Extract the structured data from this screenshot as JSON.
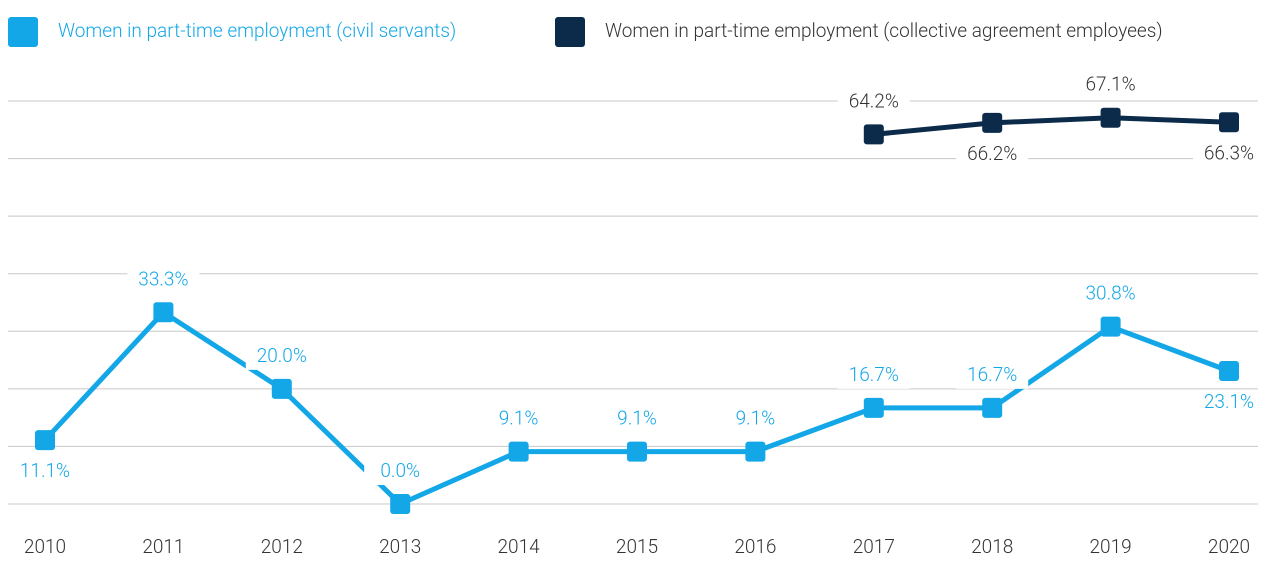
{
  "chart_data": {
    "type": "line",
    "categories": [
      "2010",
      "2011",
      "2012",
      "2013",
      "2014",
      "2015",
      "2016",
      "2017",
      "2018",
      "2019",
      "2020"
    ],
    "series": [
      {
        "name": "Women in part-time employment (civil servants)",
        "color": "#13a7e8",
        "values": [
          11.1,
          33.3,
          20.0,
          0.0,
          9.1,
          9.1,
          9.1,
          16.7,
          16.7,
          30.8,
          23.1
        ],
        "value_labels": [
          "11.1%",
          "33.3%",
          "20.0%",
          "0.0%",
          "9.1%",
          "9.1%",
          "9.1%",
          "16.7%",
          "16.7%",
          "30.8%",
          "23.1%"
        ]
      },
      {
        "name": "Women in part-time employment (collective agreement employees)",
        "color": "#0c2b4b",
        "values": [
          null,
          null,
          null,
          null,
          null,
          null,
          null,
          64.2,
          66.2,
          67.1,
          66.3
        ],
        "value_labels": [
          null,
          null,
          null,
          null,
          null,
          null,
          null,
          "64.2%",
          "66.2%",
          "67.1%",
          "66.3%"
        ]
      }
    ],
    "ylim": [
      0,
      70
    ],
    "yticks": [
      0,
      10,
      20,
      30,
      40,
      50,
      60,
      70
    ],
    "grid": true
  }
}
